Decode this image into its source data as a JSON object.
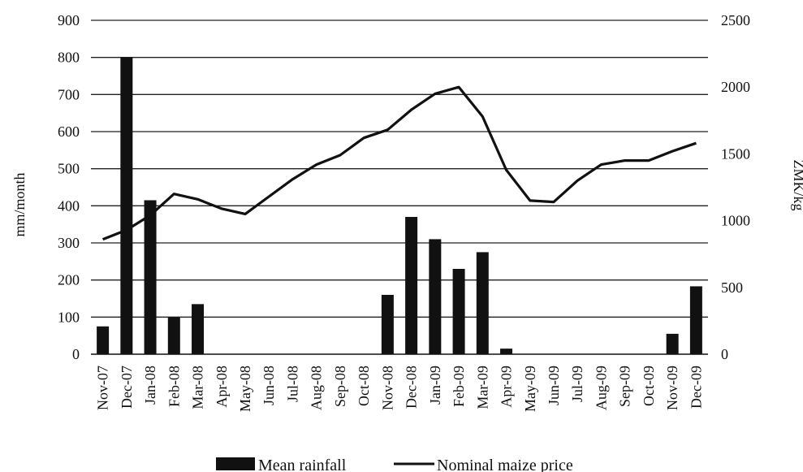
{
  "chart_data": {
    "type": "bar+line",
    "categories": [
      "Nov-07",
      "Dec-07",
      "Jan-08",
      "Feb-08",
      "Mar-08",
      "Apr-08",
      "May-08",
      "Jun-08",
      "Jul-08",
      "Aug-08",
      "Sep-08",
      "Oct-08",
      "Nov-08",
      "Dec-08",
      "Jan-09",
      "Feb-09",
      "Mar-09",
      "Apr-09",
      "May-09",
      "Jun-09",
      "Jul-09",
      "Aug-09",
      "Sep-09",
      "Oct-09",
      "Nov-09",
      "Dec-09"
    ],
    "series": [
      {
        "name": "Mean rainfall",
        "kind": "bar",
        "axis": "left",
        "color": "#111111",
        "values": [
          75,
          800,
          415,
          100,
          135,
          0,
          0,
          0,
          0,
          0,
          0,
          0,
          160,
          370,
          310,
          230,
          275,
          15,
          0,
          0,
          0,
          0,
          0,
          0,
          55,
          183
        ]
      },
      {
        "name": "Nominal maize price",
        "kind": "line",
        "axis": "right",
        "color": "#111111",
        "values": [
          860,
          930,
          1040,
          1200,
          1160,
          1090,
          1050,
          1180,
          1310,
          1420,
          1490,
          1620,
          1680,
          1830,
          1950,
          2000,
          1780,
          1380,
          1150,
          1140,
          1300,
          1420,
          1450,
          1450,
          1520,
          1580
        ]
      }
    ],
    "left_axis": {
      "label": "mm/month",
      "ticks": [
        0,
        100,
        200,
        300,
        400,
        500,
        600,
        700,
        800,
        900
      ],
      "ylim": [
        0,
        900
      ]
    },
    "right_axis": {
      "label": "ZMK/kg",
      "ticks": [
        0,
        500,
        1000,
        1500,
        2000,
        2500
      ],
      "ylim": [
        0,
        2500
      ]
    },
    "grid": true,
    "legend_position": "bottom"
  }
}
